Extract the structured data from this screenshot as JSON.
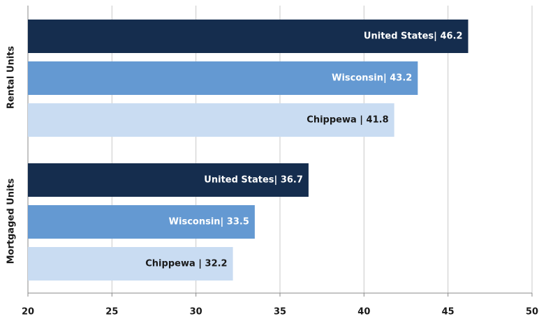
{
  "chart_data": {
    "type": "hbar",
    "categories": [
      "Rental Units",
      "Mortgaged Units"
    ],
    "series": [
      {
        "color": "#152d4e",
        "label_color": "#ffffff",
        "values": [
          46.2,
          36.7
        ],
        "value_labels": [
          "United States| 46.2",
          "United States| 36.7"
        ]
      },
      {
        "color": "#6499d2",
        "label_color": "#ffffff",
        "values": [
          43.2,
          33.5
        ],
        "value_labels": [
          "Wisconsin| 43.2",
          "Wisconsin| 33.5"
        ]
      },
      {
        "color": "#c9dcf2",
        "label_color": "#1a1a1a",
        "values": [
          41.8,
          32.2
        ],
        "value_labels": [
          "Chippewa | 41.8",
          "Chippewa | 32.2"
        ]
      }
    ],
    "xlim": [
      20,
      50
    ],
    "xticks": [
      20,
      25,
      30,
      35,
      40,
      45,
      50
    ],
    "grid": true
  }
}
